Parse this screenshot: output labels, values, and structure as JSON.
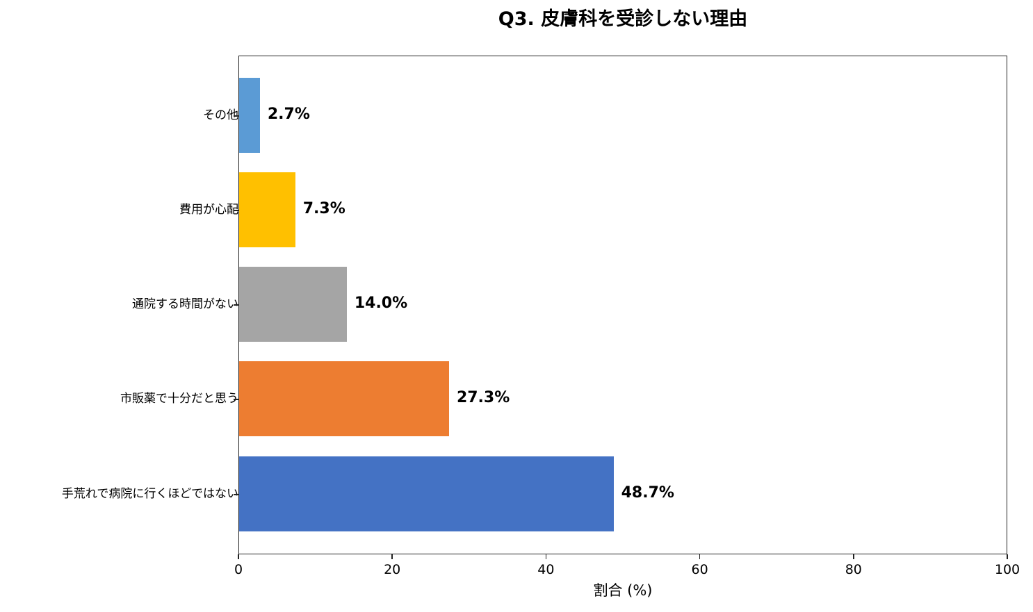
{
  "chart_data": {
    "type": "bar",
    "orientation": "horizontal",
    "title": "Q3. 皮膚科を受診しない理由",
    "xlabel": "割合 (%)",
    "ylabel": "",
    "xlim": [
      0,
      100
    ],
    "xticks": [
      0,
      20,
      40,
      60,
      80,
      100
    ],
    "grid": false,
    "legend": null,
    "categories": [
      "手荒れで病院に行くほどではない",
      "市販薬で十分だと思う",
      "通院する時間がない",
      "費用が心配",
      "その他"
    ],
    "values": [
      48.7,
      27.3,
      14.0,
      7.3,
      2.7
    ],
    "value_labels": [
      "48.7%",
      "27.3%",
      "14.0%",
      "7.3%",
      "2.7%"
    ],
    "colors": [
      "#4472c4",
      "#ed7d31",
      "#a5a5a5",
      "#ffc000",
      "#5b9bd5"
    ]
  },
  "ticks": {
    "x": [
      "0",
      "20",
      "40",
      "60",
      "80",
      "100"
    ]
  }
}
